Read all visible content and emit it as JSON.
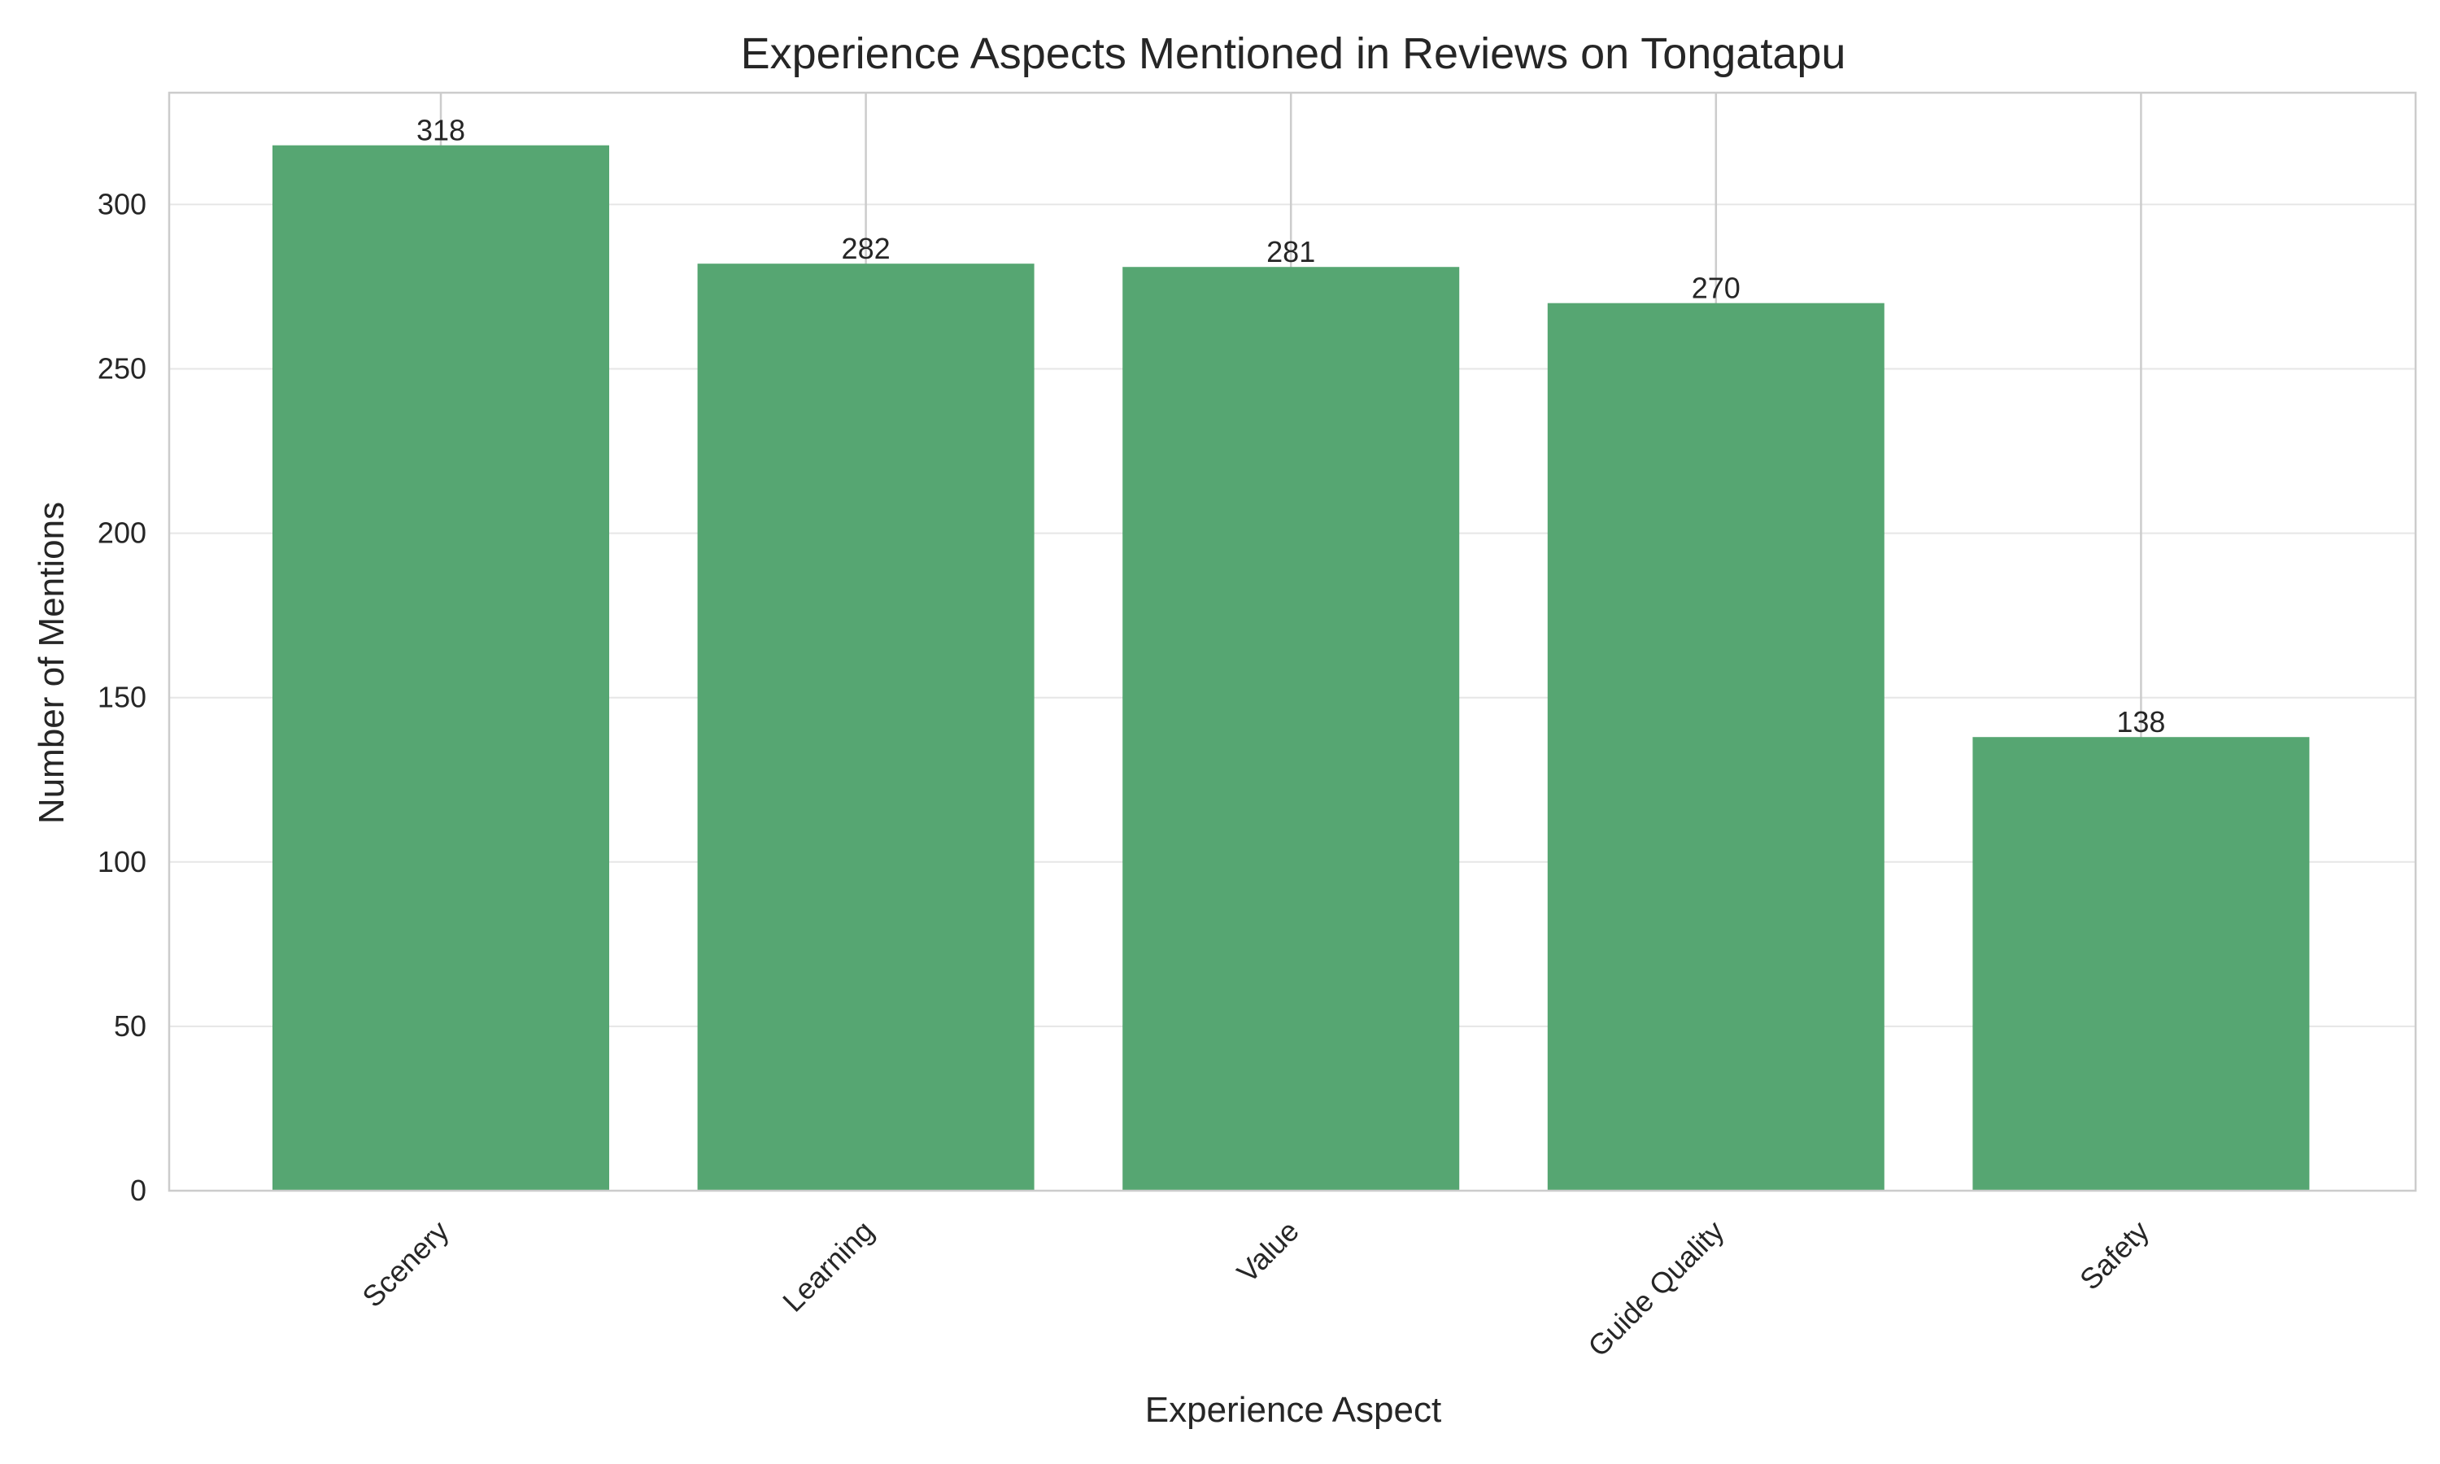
{
  "chart_data": {
    "type": "bar",
    "title": "Experience Aspects Mentioned in Reviews on Tongatapu",
    "xlabel": "Experience Aspect",
    "ylabel": "Number of Mentions",
    "categories": [
      "Scenery",
      "Learning",
      "Value",
      "Guide Quality",
      "Safety"
    ],
    "values": [
      318,
      282,
      281,
      270,
      138
    ],
    "data_labels": [
      "318",
      "282",
      "281",
      "270",
      "138"
    ],
    "ylim": [
      0,
      334
    ],
    "yticks": [
      0,
      50,
      100,
      150,
      200,
      250,
      300
    ],
    "ytick_labels": [
      "0",
      "50",
      "100",
      "150",
      "200",
      "250",
      "300"
    ],
    "x_tick_rotation": -45,
    "grid": true,
    "legend": "none",
    "bar_color": "#56a672",
    "grid_color": "#e6e6e6",
    "vertical_line_color": "#cccccc",
    "axes_edge_color": "#cccccc",
    "text_color": "#262626"
  }
}
